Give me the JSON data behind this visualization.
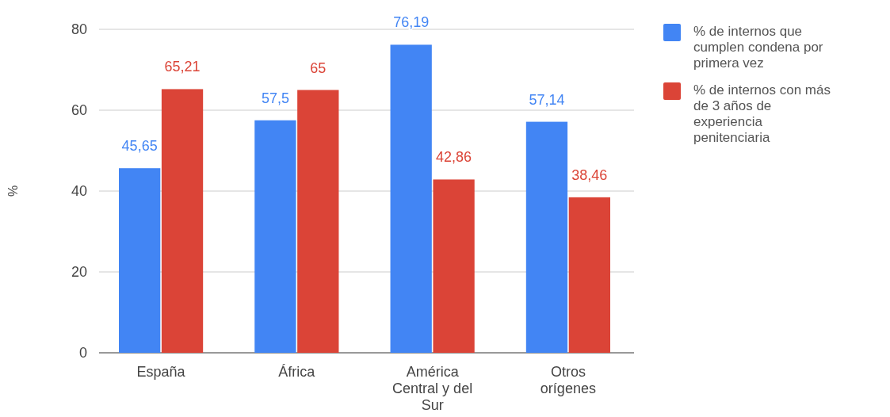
{
  "chart_data": {
    "type": "bar",
    "ylabel": "%",
    "categories": [
      "España",
      "África",
      "América Central y del Sur",
      "Otros orígenes"
    ],
    "series": [
      {
        "name": "% de internos que cumplen condena por primera vez",
        "color": "#4285f4",
        "values": [
          45.65,
          57.5,
          76.19,
          57.14
        ],
        "value_labels": [
          "45,65",
          "57,5",
          "76,19",
          "57,14"
        ]
      },
      {
        "name": "% de internos con más de 3 años de experiencia penitenciaria",
        "color": "#db4437",
        "values": [
          65.21,
          65,
          42.86,
          38.46
        ],
        "value_labels": [
          "65,21",
          "65",
          "42,86",
          "38,46"
        ]
      }
    ],
    "ylim": [
      0,
      80
    ],
    "yticks": [
      0,
      20,
      40,
      60,
      80
    ],
    "grid": "y",
    "legend": "right"
  }
}
